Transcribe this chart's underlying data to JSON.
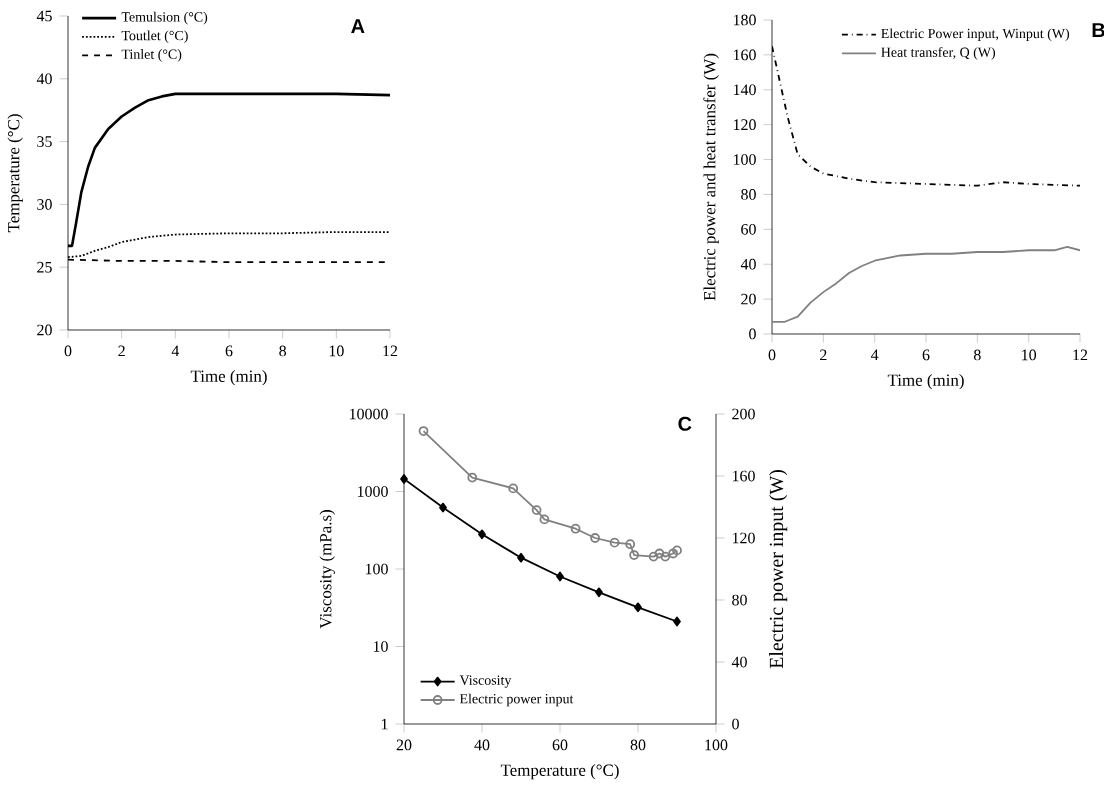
{
  "chart_data": [
    {
      "type": "line",
      "title": "A",
      "xlabel": "Time (min)",
      "ylabel": "Temperature (°C)",
      "xlim": [
        0,
        12
      ],
      "ylim": [
        20,
        45
      ],
      "xticks": [
        0,
        2,
        4,
        6,
        8,
        10,
        12
      ],
      "yticks": [
        20,
        25,
        30,
        35,
        40,
        45
      ],
      "legend": "top left",
      "grid": false,
      "marker": "none",
      "series": [
        {
          "name": "Temulsion (°C)",
          "color": "#000000",
          "line_style": "solid",
          "x": [
            0,
            0.15,
            0.3,
            0.5,
            0.75,
            1,
            1.5,
            2,
            2.5,
            3,
            3.5,
            4,
            5,
            6,
            8,
            10,
            12
          ],
          "values": [
            26.7,
            26.7,
            28.5,
            31,
            33,
            34.5,
            36,
            37,
            37.7,
            38.3,
            38.6,
            38.8,
            38.8,
            38.8,
            38.8,
            38.8,
            38.7
          ]
        },
        {
          "name": "Toutlet (°C)",
          "color": "#000000",
          "line_style": "dotted",
          "x": [
            0,
            0.5,
            1,
            1.5,
            2,
            3,
            4,
            6,
            8,
            10,
            12
          ],
          "values": [
            25.8,
            25.9,
            26.3,
            26.6,
            27,
            27.4,
            27.6,
            27.7,
            27.7,
            27.8,
            27.8
          ]
        },
        {
          "name": "Tinlet (°C)",
          "color": "#000000",
          "line_style": "dashed",
          "x": [
            0,
            2,
            4,
            6,
            8,
            10,
            12
          ],
          "values": [
            25.6,
            25.5,
            25.5,
            25.4,
            25.4,
            25.4,
            25.4
          ]
        }
      ]
    },
    {
      "type": "line",
      "title": "B",
      "xlabel": "Time (min)",
      "ylabel": "Electric power and heat transfer (W)",
      "xlim": [
        0,
        12
      ],
      "ylim": [
        0,
        180
      ],
      "xticks": [
        0,
        2,
        4,
        6,
        8,
        10,
        12
      ],
      "yticks": [
        0,
        20,
        40,
        60,
        80,
        100,
        120,
        140,
        160,
        180
      ],
      "legend": "top right",
      "grid": false,
      "marker": "none",
      "series": [
        {
          "name": "Electric Power input, Winput (W)",
          "color": "#000000",
          "line_style": "dashdot",
          "x": [
            0,
            0.3,
            0.6,
            1,
            1.5,
            2,
            3,
            4,
            6,
            8,
            9,
            10,
            12
          ],
          "values": [
            165,
            145,
            125,
            103,
            96,
            92,
            89,
            87,
            86,
            85,
            87,
            86,
            85
          ]
        },
        {
          "name": "Heat transfer, Q (W)",
          "color": "#808080",
          "line_style": "solid",
          "x": [
            0,
            0.5,
            1,
            1.5,
            2,
            2.5,
            3,
            3.5,
            4,
            5,
            6,
            7,
            8,
            9,
            10,
            11,
            11.5,
            12
          ],
          "values": [
            7,
            7,
            10,
            18,
            24,
            29,
            35,
            39,
            42,
            45,
            46,
            46,
            47,
            47,
            48,
            48,
            50,
            48
          ]
        }
      ]
    },
    {
      "type": "line",
      "title": "C",
      "xlabel": "Temperature (°C)",
      "ylabel": "Viscosity (mPa.s)",
      "y2label": "Electric power input (W)",
      "log": "y",
      "xlim": [
        20,
        100
      ],
      "ylim": [
        1,
        10000
      ],
      "y2lim": [
        0,
        200
      ],
      "xticks": [
        20,
        40,
        60,
        80,
        100
      ],
      "yticks": [
        1,
        10,
        100,
        1000,
        10000
      ],
      "y2ticks": [
        0,
        40,
        80,
        120,
        160,
        200
      ],
      "legend": "bottom left",
      "grid": false,
      "series": [
        {
          "name": "Viscosity",
          "color": "#000000",
          "line_style": "solid",
          "marker": "diamond",
          "x": [
            20,
            30,
            40,
            50,
            60,
            70,
            80,
            90
          ],
          "values": [
            1450,
            620,
            280,
            140,
            80,
            50,
            32,
            21
          ]
        },
        {
          "name": "Electric power input",
          "color": "#808080",
          "line_style": "solid",
          "marker": "circle",
          "axis": "y2",
          "x": [
            25,
            37.5,
            48,
            54,
            56,
            64,
            69,
            74,
            78,
            79,
            84,
            85.5,
            87,
            89,
            90
          ],
          "values": [
            189,
            159,
            152,
            138,
            132,
            126,
            120,
            117,
            116,
            109,
            108,
            110,
            108,
            110,
            112
          ]
        }
      ]
    }
  ]
}
